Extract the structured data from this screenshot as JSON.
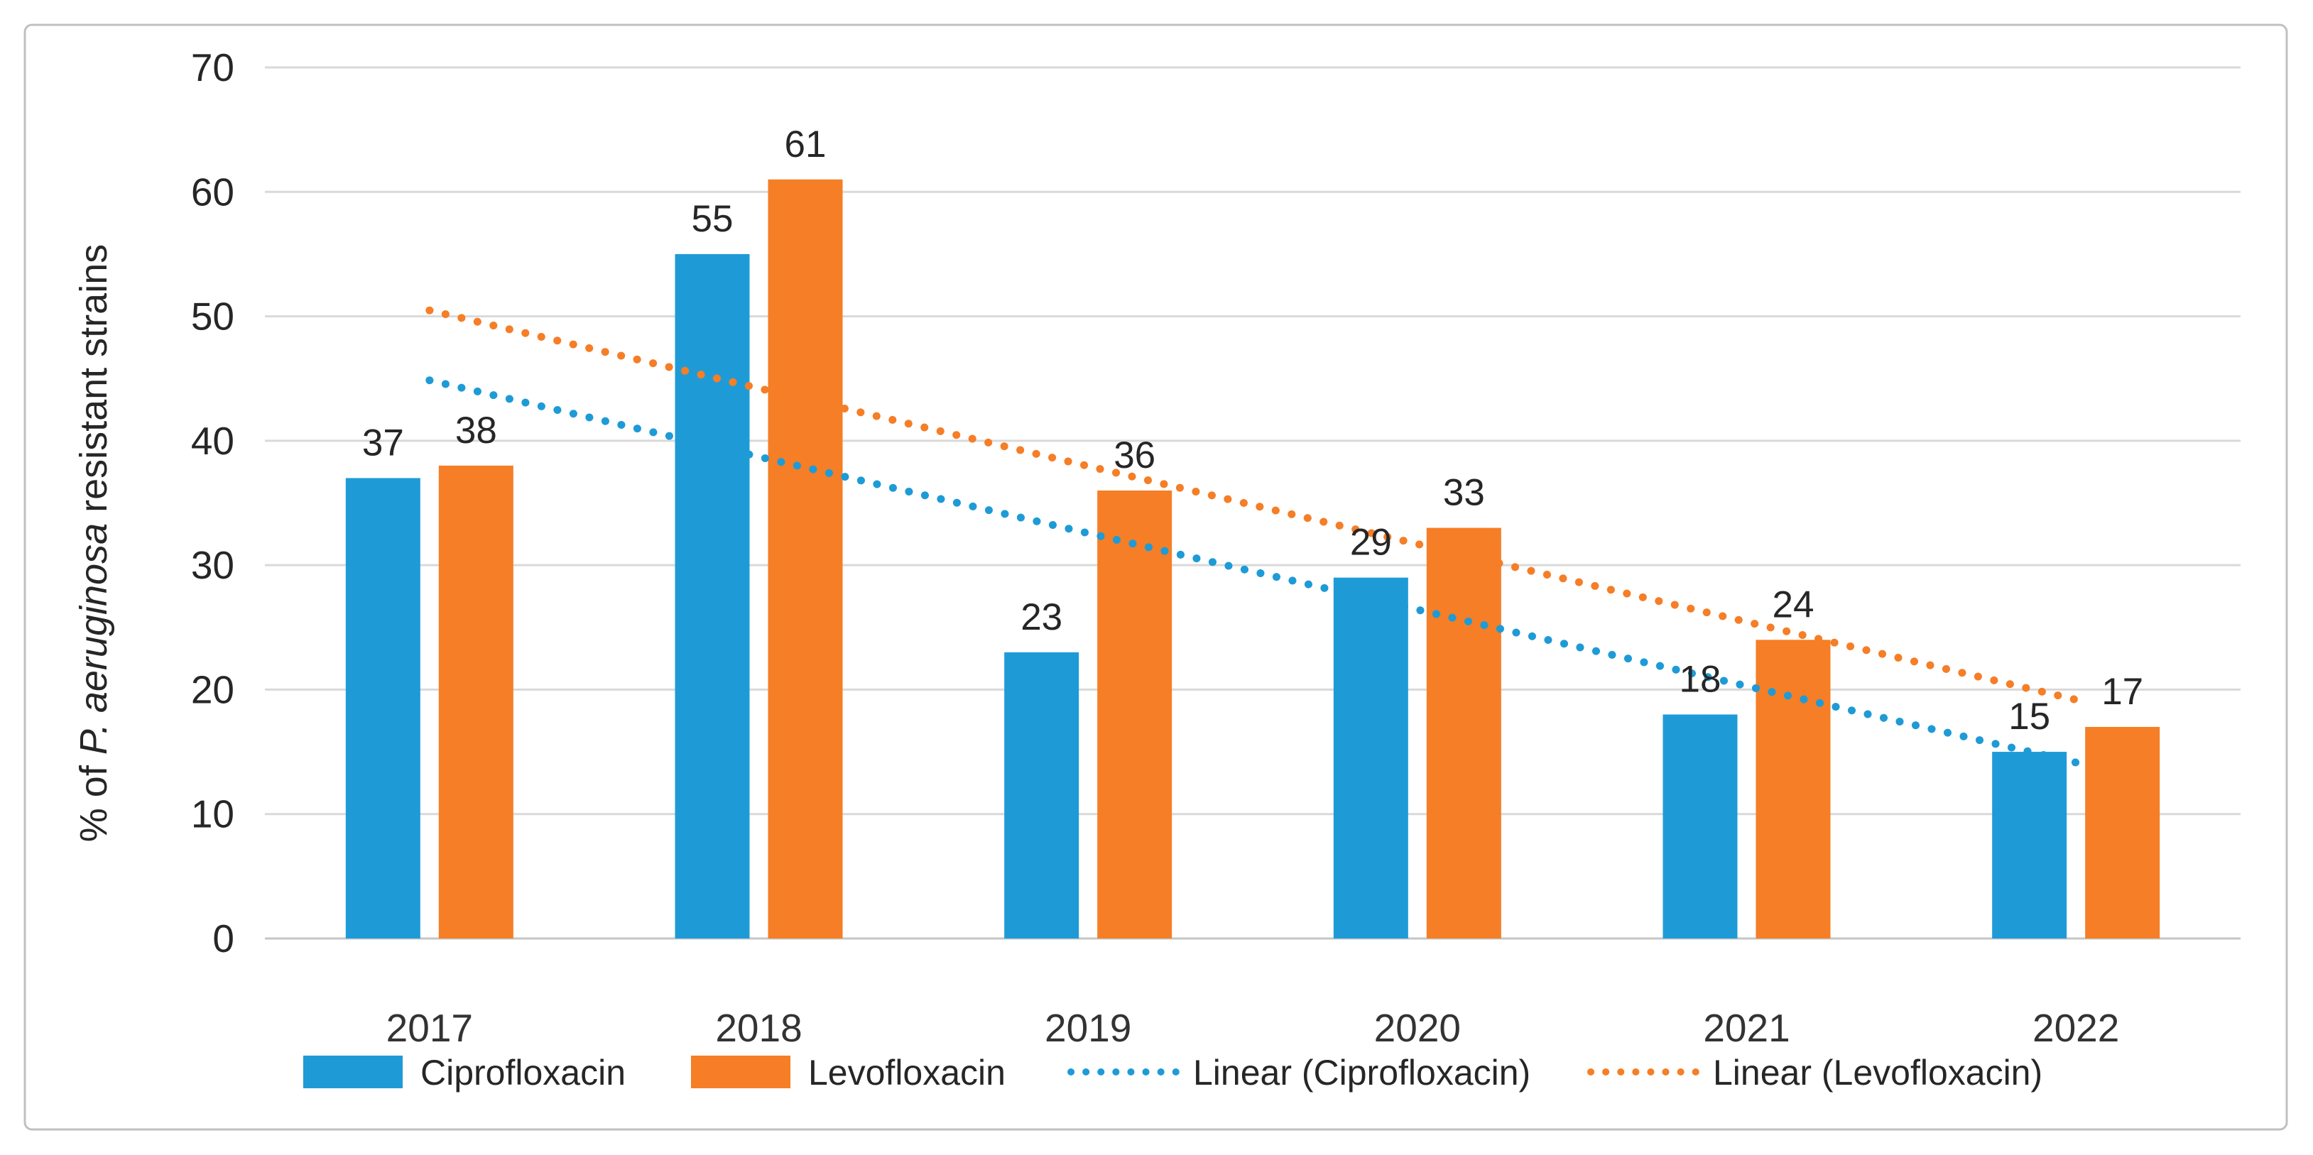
{
  "chart_data": {
    "type": "bar",
    "categories": [
      "2017",
      "2018",
      "2019",
      "2020",
      "2021",
      "2022"
    ],
    "series": [
      {
        "name": "Ciprofloxacin",
        "color": "#1E9BD7",
        "values": [
          37,
          55,
          23,
          29,
          18,
          15
        ]
      },
      {
        "name": "Levofloxacin",
        "color": "#F57E26",
        "values": [
          38,
          61,
          36,
          33,
          24,
          17
        ]
      }
    ],
    "trendlines": [
      {
        "label": "Linear (Ciprofloxacin)",
        "series_index": 0,
        "style": "dotted"
      },
      {
        "label": "Linear (Levofloxacin)",
        "series_index": 1,
        "style": "dotted"
      }
    ],
    "data_labels": true,
    "ylabel": {
      "prefix": "% of ",
      "italic": "P. aeruginosa",
      "suffix": " resistant strains"
    },
    "yticks": [
      0,
      10,
      20,
      30,
      40,
      50,
      60,
      70
    ],
    "ylim": [
      0,
      70
    ],
    "grid": "horizontal",
    "legend_position": "bottom"
  },
  "colors": {
    "gridline": "#D9D9D9",
    "axis_line": "#C6C6C6",
    "border": "#C0C0C0",
    "label_text": "#262626",
    "tick_text": "#333333"
  }
}
